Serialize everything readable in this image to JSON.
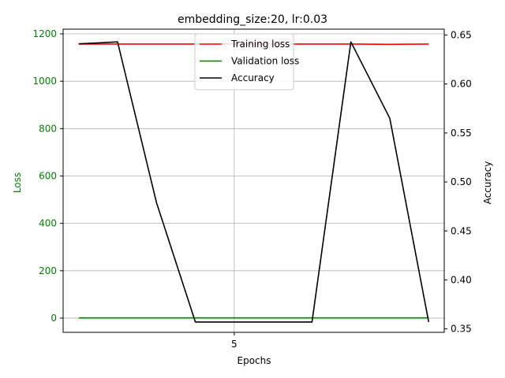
{
  "chart_data": {
    "type": "line",
    "title": "embedding_size:20, lr:0.03",
    "xlabel": "Epochs",
    "ylabel_left": "Loss",
    "ylabel_right": "Accuracy",
    "x": [
      1,
      2,
      3,
      4,
      5,
      6,
      7,
      8,
      9,
      10
    ],
    "xlim": [
      0.6,
      10.4
    ],
    "xticks": [
      5
    ],
    "ylim_left": [
      -60,
      1220
    ],
    "yticks_left": [
      0,
      200,
      400,
      600,
      800,
      1000,
      1200
    ],
    "ylim_right": [
      0.3465,
      0.656
    ],
    "yticks_right": [
      0.35,
      0.4,
      0.45,
      0.5,
      0.55,
      0.6,
      0.65
    ],
    "grid": true,
    "legend_position": "top-center",
    "colors": {
      "train": "#ff0000",
      "val": "#008000",
      "acc": "#000000",
      "left_axis": "#008000",
      "frame": "#000000",
      "grid": "#b0b0b0"
    },
    "series": [
      {
        "name": "Training loss",
        "axis": "left",
        "color": "#ff0000",
        "values": [
          1157,
          1157,
          1157,
          1157,
          1157,
          1157,
          1157,
          1157,
          1156,
          1157
        ]
      },
      {
        "name": "Validation loss",
        "axis": "left",
        "color": "#008000",
        "values": [
          1,
          1,
          1,
          1,
          1,
          1,
          1,
          1,
          1,
          1
        ]
      },
      {
        "name": "Accuracy",
        "axis": "right",
        "color": "#000000",
        "values": [
          0.641,
          0.643,
          0.479,
          0.357,
          0.357,
          0.357,
          0.357,
          0.643,
          0.565,
          0.357
        ]
      }
    ]
  }
}
